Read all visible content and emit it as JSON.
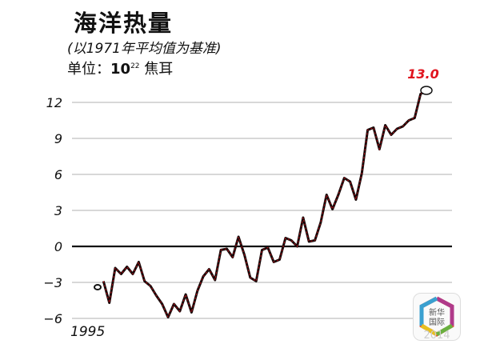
{
  "chart_data": {
    "type": "line",
    "title": "海洋热量",
    "subtitle": "(以1971年平均值为基准)",
    "unit_prefix": "单位：",
    "unit_base": "10",
    "unit_exp": "22",
    "unit_suffix": "焦耳",
    "x_tick_labels": [
      "1995"
    ],
    "y_ticks": [
      12,
      9,
      6,
      3,
      0,
      -3,
      -6
    ],
    "y_tick_labels": [
      "12",
      "9",
      "6",
      "3",
      "0",
      "−3",
      "−6"
    ],
    "ylim": [
      -6.5,
      13.5
    ],
    "grid": true,
    "series": [
      {
        "values": [
          -3.4,
          -2.9,
          -4.7,
          -1.8,
          -2.3,
          -1.7,
          -2.3,
          -1.3,
          -2.9,
          -3.3,
          -4.1,
          -4.8,
          -5.9,
          -4.8,
          -5.4,
          -4.0,
          -5.5,
          -3.7,
          -2.5,
          -1.9,
          -2.8,
          -0.3,
          -0.2,
          -0.9,
          0.8,
          -0.7,
          -2.6,
          -2.9,
          -0.3,
          -0.1,
          -1.3,
          -1.1,
          0.7,
          0.5,
          0.0,
          2.4,
          0.4,
          0.5,
          2.0,
          4.3,
          3.1,
          4.3,
          5.7,
          5.4,
          3.9,
          6.1,
          9.7,
          9.9,
          8.1,
          10.1,
          9.3,
          9.8,
          10.0,
          10.5,
          10.7,
          12.7,
          13.0
        ],
        "color": "#1a0a0a",
        "accent": "#c0101a"
      }
    ],
    "annotation": {
      "label": "13.0",
      "color": "#e0141e"
    }
  },
  "logo": {
    "text_line1": "新华",
    "text_line2": "国际",
    "watermark": "2014"
  }
}
